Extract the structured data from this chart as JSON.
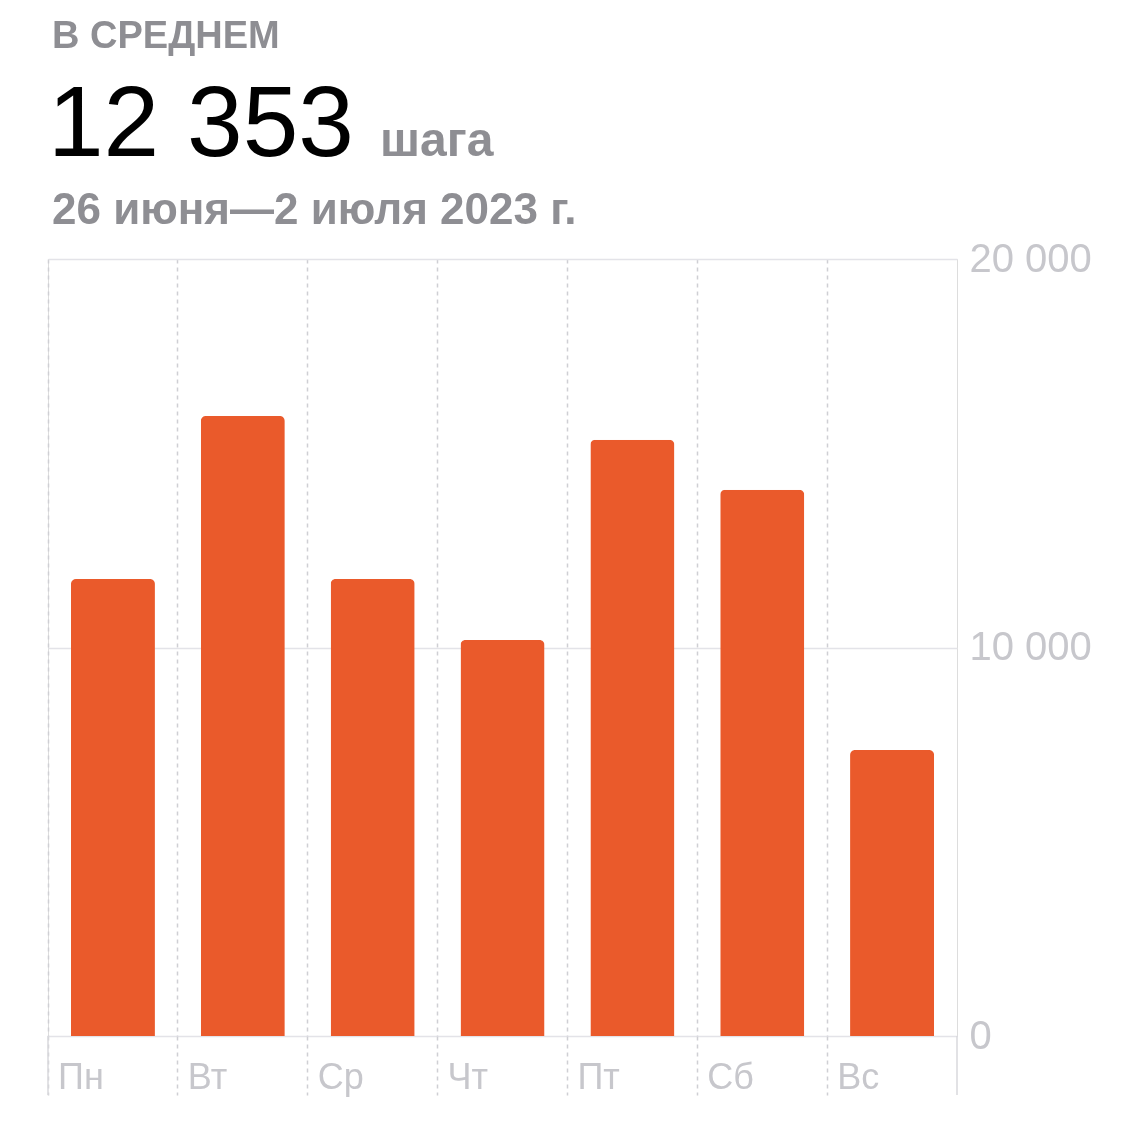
{
  "chart_data": {
    "type": "bar",
    "title": "12 353",
    "subtitle": "26 июня—2 июля 2023 г.",
    "annotations": [
      "В СРЕДНЕМ",
      "шага"
    ],
    "categories": [
      "Пн",
      "Вт",
      "Ср",
      "Чт",
      "Пт",
      "Сб",
      "Вс"
    ],
    "values": [
      11760,
      15960,
      11760,
      10190,
      15350,
      14060,
      7360
    ],
    "color": "#ea5a2b",
    "ylim": [
      0,
      20000
    ],
    "yticks": [
      0,
      {
        "value": 10000,
        "label": "10 000"
      },
      {
        "value": 20000,
        "label": "20 000"
      }
    ],
    "grid": true
  }
}
